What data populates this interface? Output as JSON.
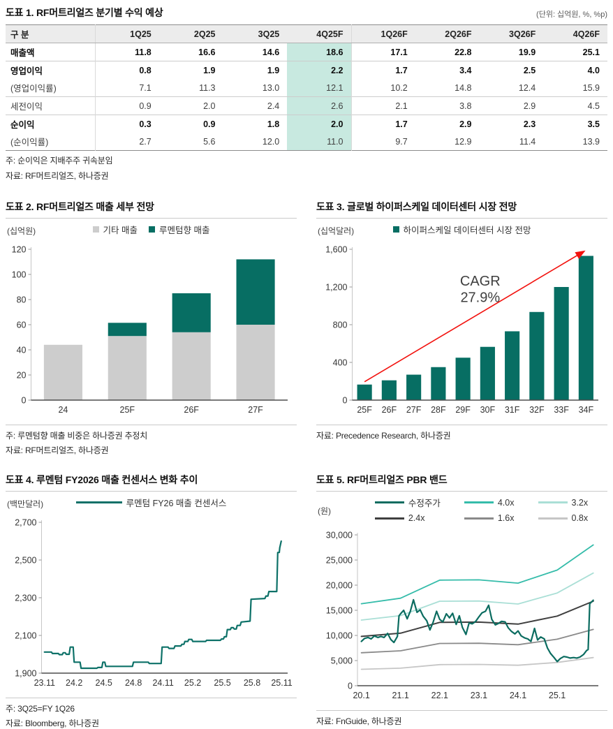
{
  "colors": {
    "teal_dark": "#076e63",
    "teal_line": "#0d7168",
    "teal_medium": "#35bcaa",
    "teal_light": "#aadfd6",
    "gray_bar": "#cdcdcd",
    "band_dark": "#3f3f3f",
    "band_mid": "#8a8a8a",
    "band_light": "#c6c6c6",
    "highlight_mint": "#c8e9e0",
    "header_gray": "#ececec",
    "arrow_red": "#f2120e"
  },
  "chart_data": [
    {
      "id": "fig1",
      "type": "table",
      "title": "도표 1. RF머트리얼즈 분기별 수익 예상",
      "unit": "(단위: 십억원, %, %p)",
      "corner_header": "구 분",
      "columns": [
        "1Q25",
        "2Q25",
        "3Q25",
        "4Q25F",
        "1Q26F",
        "2Q26F",
        "3Q26F",
        "4Q26F"
      ],
      "highlight_column": "4Q25F",
      "rows": [
        {
          "label": "매출액",
          "style": "bold",
          "separator_above": true,
          "values": [
            "11.8",
            "16.6",
            "14.6",
            "18.6",
            "17.1",
            "22.8",
            "19.9",
            "25.1"
          ]
        },
        {
          "label": "영업이익",
          "style": "bold",
          "separator_above": true,
          "values": [
            "0.8",
            "1.9",
            "1.9",
            "2.2",
            "1.7",
            "3.4",
            "2.5",
            "4.0"
          ]
        },
        {
          "label": "(영업이익률)",
          "style": "plain",
          "separator_above": false,
          "values": [
            "7.1",
            "11.3",
            "13.0",
            "12.1",
            "10.2",
            "14.8",
            "12.4",
            "15.9"
          ]
        },
        {
          "label": "세전이익",
          "style": "plain",
          "separator_above": true,
          "values": [
            "0.9",
            "2.0",
            "2.4",
            "2.6",
            "2.1",
            "3.8",
            "2.9",
            "4.5"
          ]
        },
        {
          "label": "순이익",
          "style": "bold",
          "separator_above": true,
          "values": [
            "0.3",
            "0.9",
            "1.8",
            "2.0",
            "1.7",
            "2.9",
            "2.3",
            "3.5"
          ]
        },
        {
          "label": "(순이익률)",
          "style": "plain",
          "separator_above": false,
          "values": [
            "2.7",
            "5.6",
            "12.0",
            "11.0",
            "9.7",
            "12.9",
            "11.4",
            "13.9"
          ]
        }
      ],
      "note": "주: 순이익은 지배주주 귀속분임",
      "source": "자료: RF머트리얼즈, 하나증권"
    },
    {
      "id": "fig2",
      "type": "bar",
      "stacked": true,
      "title": "도표 2. RF머트리얼즈 매출 세부 전망",
      "unit_label": "(십억원)",
      "categories": [
        "24",
        "25F",
        "26F",
        "27F"
      ],
      "series": [
        {
          "name": "기타 매출",
          "color": "#cdcdcd",
          "values": [
            44,
            51,
            54,
            60
          ]
        },
        {
          "name": "루멘텀향 매출",
          "color": "#076e63",
          "values": [
            0,
            10.5,
            31,
            52
          ]
        }
      ],
      "ylim": [
        0,
        120
      ],
      "yticks": [
        0,
        20,
        40,
        60,
        80,
        100,
        120
      ],
      "bar_frac": 0.6,
      "legend": {
        "swatch": "square"
      },
      "note": "주: 루멘텀향 매출 비중은 하나증권 추정치",
      "source": "자료: RF머트리얼즈, 하나증권"
    },
    {
      "id": "fig3",
      "type": "bar",
      "stacked": false,
      "title": "도표 3. 글로벌 하이퍼스케일 데이터센터 시장 전망",
      "unit_label": "(십억달러)",
      "categories": [
        "25F",
        "26F",
        "27F",
        "28F",
        "29F",
        "30F",
        "31F",
        "32F",
        "33F",
        "34F"
      ],
      "series": [
        {
          "name": "하이퍼스케일 데이터센터 시장 전망",
          "color": "#076e63",
          "values": [
            165,
            210,
            270,
            350,
            450,
            565,
            730,
            935,
            1200,
            1530
          ]
        }
      ],
      "ylim": [
        0,
        1600
      ],
      "yticks": [
        0,
        400,
        800,
        1200,
        1600
      ],
      "bar_frac": 0.6,
      "legend": {
        "swatch": "square"
      },
      "annotation": {
        "lines": [
          "CAGR",
          "27.9%"
        ],
        "x_frac": 0.52,
        "y_values": [
          1215,
          1040
        ],
        "color": "#3f3f3f",
        "font_size": 20
      },
      "arrow": {
        "from_cat": 0,
        "from_val": 195,
        "to_cat": 8.9,
        "to_val": 1575,
        "color": "#f2120e"
      },
      "source": "자료: Precedence Research, 하나증권"
    },
    {
      "id": "fig4",
      "type": "line",
      "title": "도표 4. 루멘텀 FY2026 매출 컨센서스 변화 추이",
      "unit_label": "(백만달러)",
      "xlim": [
        -0.3,
        24.6
      ],
      "xticks": [
        {
          "v": 0,
          "label": "23.11"
        },
        {
          "v": 3,
          "label": "24.2"
        },
        {
          "v": 6,
          "label": "24.5"
        },
        {
          "v": 9,
          "label": "24.8"
        },
        {
          "v": 12,
          "label": "24.11"
        },
        {
          "v": 15,
          "label": "25.2"
        },
        {
          "v": 18,
          "label": "25.5"
        },
        {
          "v": 21,
          "label": "25.8"
        },
        {
          "v": 24,
          "label": "25.11"
        }
      ],
      "ylim": [
        1900,
        2700
      ],
      "yticks": [
        1900,
        2100,
        2300,
        2500,
        2700
      ],
      "series": [
        {
          "name": "루멘텀 FY26 매출 컨센서스",
          "color": "#0d7168",
          "width": 2.2,
          "points": [
            [
              0,
              2012
            ],
            [
              0.7,
              2012
            ],
            [
              0.8,
              2004
            ],
            [
              1.4,
              2004
            ],
            [
              1.5,
              1998
            ],
            [
              1.8,
              1998
            ],
            [
              1.9,
              2008
            ],
            [
              2.1,
              2008
            ],
            [
              2.2,
              2000
            ],
            [
              2.5,
              2000
            ],
            [
              2.6,
              2038
            ],
            [
              2.9,
              2038
            ],
            [
              3.0,
              1958
            ],
            [
              3.6,
              1958
            ],
            [
              3.7,
              1926
            ],
            [
              5.3,
              1926
            ],
            [
              5.4,
              1930
            ],
            [
              5.8,
              1930
            ],
            [
              5.9,
              1958
            ],
            [
              6.1,
              1958
            ],
            [
              6.2,
              1936
            ],
            [
              8.9,
              1936
            ],
            [
              9.0,
              1958
            ],
            [
              10.5,
              1958
            ],
            [
              10.6,
              1951
            ],
            [
              11.8,
              1951
            ],
            [
              11.9,
              2038
            ],
            [
              12.5,
              2038
            ],
            [
              12.6,
              2031
            ],
            [
              13.1,
              2031
            ],
            [
              13.2,
              2044
            ],
            [
              13.8,
              2044
            ],
            [
              13.9,
              2053
            ],
            [
              14.1,
              2053
            ],
            [
              14.2,
              2068
            ],
            [
              14.5,
              2068
            ],
            [
              14.6,
              2079
            ],
            [
              14.9,
              2079
            ],
            [
              15.0,
              2068
            ],
            [
              16.3,
              2068
            ],
            [
              16.4,
              2074
            ],
            [
              17.8,
              2074
            ],
            [
              17.9,
              2081
            ],
            [
              18.1,
              2081
            ],
            [
              18.2,
              2093
            ],
            [
              18.4,
              2093
            ],
            [
              18.5,
              2131
            ],
            [
              18.8,
              2131
            ],
            [
              18.9,
              2141
            ],
            [
              19.1,
              2141
            ],
            [
              19.2,
              2134
            ],
            [
              19.4,
              2134
            ],
            [
              19.5,
              2153
            ],
            [
              19.8,
              2153
            ],
            [
              19.9,
              2171
            ],
            [
              20.8,
              2176
            ],
            [
              20.9,
              2292
            ],
            [
              22.3,
              2296
            ],
            [
              22.4,
              2309
            ],
            [
              22.6,
              2309
            ],
            [
              22.7,
              2333
            ],
            [
              23.5,
              2333
            ],
            [
              23.6,
              2540
            ],
            [
              23.75,
              2540
            ],
            [
              23.8,
              2565
            ],
            [
              23.95,
              2600
            ]
          ]
        }
      ],
      "legend": {
        "swatch": "line",
        "swatch_w": 66
      },
      "note": "주: 3Q25=FY 1Q26",
      "source": "자료: Bloomberg, 하나증권"
    },
    {
      "id": "fig5",
      "type": "line",
      "title": "도표 5. RF머트리얼즈 PBR 밴드",
      "unit_label": "(원)",
      "xlim": [
        19.9,
        26.05
      ],
      "xticks": [
        {
          "v": 20.0,
          "label": "20.1"
        },
        {
          "v": 21.0,
          "label": "21.1"
        },
        {
          "v": 22.0,
          "label": "22.1"
        },
        {
          "v": 23.0,
          "label": "23.1"
        },
        {
          "v": 24.0,
          "label": "24.1"
        },
        {
          "v": 25.0,
          "label": "25.1"
        }
      ],
      "ylim": [
        0,
        30000
      ],
      "yticks": [
        0,
        5000,
        10000,
        15000,
        20000,
        25000,
        30000
      ],
      "draw_order": [
        1,
        2,
        3,
        4,
        5,
        0
      ],
      "series": [
        {
          "name": "수정주가",
          "color": "#0b6c60",
          "width": 2.2,
          "points": [
            [
              20.0,
              8800
            ],
            [
              20.08,
              9400
            ],
            [
              20.17,
              9600
            ],
            [
              20.25,
              9300
            ],
            [
              20.33,
              9900
            ],
            [
              20.42,
              9600
            ],
            [
              20.5,
              9800
            ],
            [
              20.58,
              9600
            ],
            [
              20.67,
              10400
            ],
            [
              20.75,
              9200
            ],
            [
              20.83,
              8600
            ],
            [
              20.92,
              9800
            ],
            [
              20.96,
              13900
            ],
            [
              21.0,
              14300
            ],
            [
              21.08,
              15000
            ],
            [
              21.17,
              13300
            ],
            [
              21.25,
              14800
            ],
            [
              21.33,
              17100
            ],
            [
              21.42,
              14600
            ],
            [
              21.5,
              15100
            ],
            [
              21.58,
              13800
            ],
            [
              21.67,
              12900
            ],
            [
              21.75,
              11100
            ],
            [
              21.83,
              12600
            ],
            [
              21.92,
              14800
            ],
            [
              22.0,
              13200
            ],
            [
              22.08,
              12700
            ],
            [
              22.17,
              14300
            ],
            [
              22.25,
              13500
            ],
            [
              22.33,
              14400
            ],
            [
              22.42,
              12200
            ],
            [
              22.5,
              13900
            ],
            [
              22.58,
              11600
            ],
            [
              22.67,
              10200
            ],
            [
              22.75,
              12500
            ],
            [
              22.83,
              12300
            ],
            [
              22.92,
              12800
            ],
            [
              23.0,
              13700
            ],
            [
              23.08,
              14500
            ],
            [
              23.17,
              14800
            ],
            [
              23.25,
              16000
            ],
            [
              23.33,
              13200
            ],
            [
              23.42,
              12100
            ],
            [
              23.5,
              12400
            ],
            [
              23.58,
              12800
            ],
            [
              23.67,
              12700
            ],
            [
              23.75,
              11500
            ],
            [
              23.83,
              10800
            ],
            [
              23.92,
              10300
            ],
            [
              24.0,
              10900
            ],
            [
              24.08,
              9900
            ],
            [
              24.17,
              9500
            ],
            [
              24.25,
              9300
            ],
            [
              24.33,
              8800
            ],
            [
              24.42,
              11400
            ],
            [
              24.5,
              9100
            ],
            [
              24.58,
              9700
            ],
            [
              24.67,
              9300
            ],
            [
              24.75,
              7500
            ],
            [
              24.83,
              6400
            ],
            [
              24.92,
              5600
            ],
            [
              25.0,
              4800
            ],
            [
              25.08,
              5400
            ],
            [
              25.17,
              5800
            ],
            [
              25.25,
              5700
            ],
            [
              25.33,
              5500
            ],
            [
              25.42,
              5600
            ],
            [
              25.5,
              5500
            ],
            [
              25.58,
              5700
            ],
            [
              25.67,
              6200
            ],
            [
              25.75,
              7000
            ],
            [
              25.79,
              7200
            ],
            [
              25.83,
              16300
            ],
            [
              25.92,
              17000
            ]
          ]
        },
        {
          "name": "4.0x",
          "color": "#35bcaa",
          "width": 1.8,
          "points": [
            [
              20.0,
              16300
            ],
            [
              21.0,
              17400
            ],
            [
              22.0,
              21000
            ],
            [
              23.0,
              21050
            ],
            [
              24.0,
              20400
            ],
            [
              25.0,
              23000
            ],
            [
              25.92,
              28000
            ]
          ]
        },
        {
          "name": "3.2x",
          "color": "#aadfd6",
          "width": 1.8,
          "points": [
            [
              20.0,
              13050
            ],
            [
              21.0,
              13950
            ],
            [
              22.0,
              16800
            ],
            [
              23.0,
              16850
            ],
            [
              24.0,
              16250
            ],
            [
              25.0,
              18450
            ],
            [
              25.92,
              22400
            ]
          ]
        },
        {
          "name": "2.4x",
          "color": "#3f3f3f",
          "width": 2,
          "points": [
            [
              20.0,
              9800
            ],
            [
              21.0,
              10450
            ],
            [
              22.0,
              12600
            ],
            [
              23.0,
              12650
            ],
            [
              24.0,
              12250
            ],
            [
              25.0,
              13850
            ],
            [
              25.92,
              16800
            ]
          ]
        },
        {
          "name": "1.6x",
          "color": "#8a8a8a",
          "width": 1.8,
          "points": [
            [
              20.0,
              6550
            ],
            [
              21.0,
              6950
            ],
            [
              22.0,
              8400
            ],
            [
              23.0,
              8450
            ],
            [
              24.0,
              8150
            ],
            [
              25.0,
              9250
            ],
            [
              25.92,
              11200
            ]
          ]
        },
        {
          "name": "0.8x",
          "color": "#c6c6c6",
          "width": 1.8,
          "points": [
            [
              20.0,
              3270
            ],
            [
              21.0,
              3480
            ],
            [
              22.0,
              4200
            ],
            [
              23.0,
              4230
            ],
            [
              24.0,
              4070
            ],
            [
              25.0,
              4620
            ],
            [
              25.92,
              5600
            ]
          ]
        }
      ],
      "legend": {
        "swatch": "line",
        "swatch_w": 42,
        "cols": 3
      },
      "source": "자료: FnGuide, 하나증권"
    }
  ]
}
